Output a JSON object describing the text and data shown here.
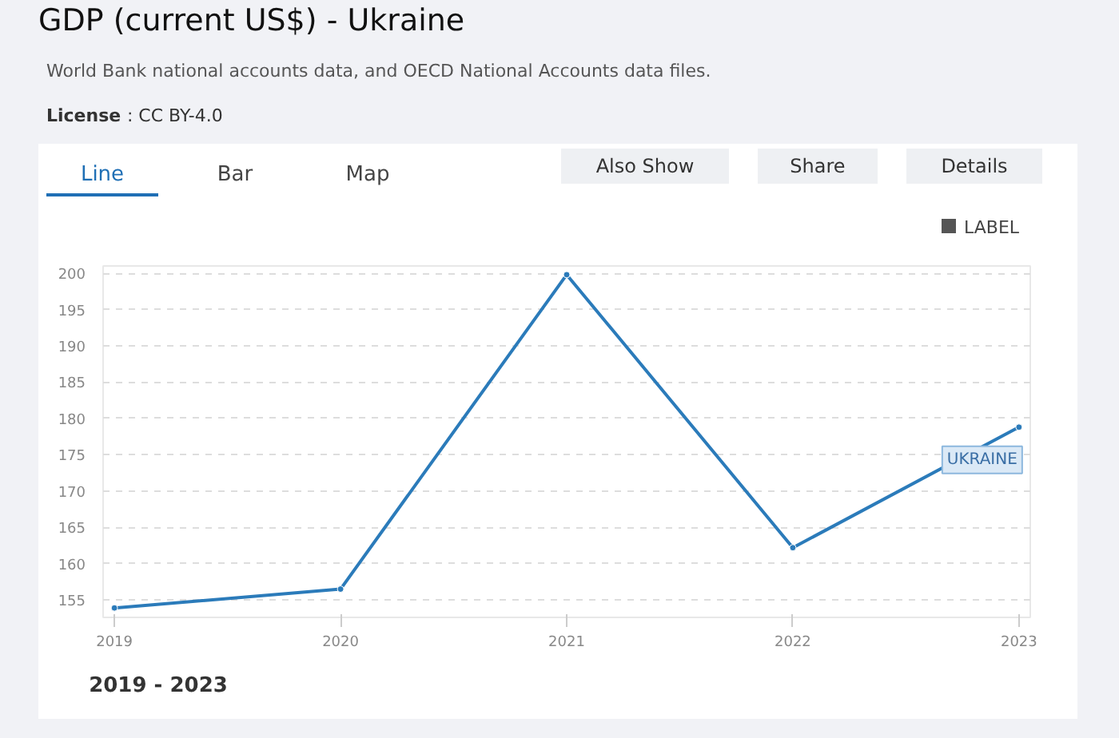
{
  "chart_data": {
    "type": "line",
    "title": "GDP (current US$) - Ukraine",
    "subtitle": "World Bank national accounts data, and OECD National Accounts data files.",
    "annotations": [
      "License : CC BY-4.0",
      "Line",
      "Bar",
      "Map",
      "Also Show",
      "Share",
      "Details",
      "LABEL",
      "2019 - 2023"
    ],
    "x": [
      2019,
      2020,
      2021,
      2022,
      2023
    ],
    "xlim": [
      2018.95,
      2023.05
    ],
    "xticks": [
      2019,
      2020,
      2021,
      2022,
      2023
    ],
    "ylim": [
      152.6,
      201
    ],
    "yticks": [
      155,
      160,
      165,
      170,
      175,
      180,
      185,
      190,
      195,
      200
    ],
    "grid": "y",
    "marker": "circle",
    "line_style": "solid",
    "series": [
      {
        "name": "UKRAINE",
        "color": "#2b7bba",
        "values": [
          153.9,
          156.5,
          199.8,
          162.2,
          178.8
        ]
      }
    ]
  }
}
